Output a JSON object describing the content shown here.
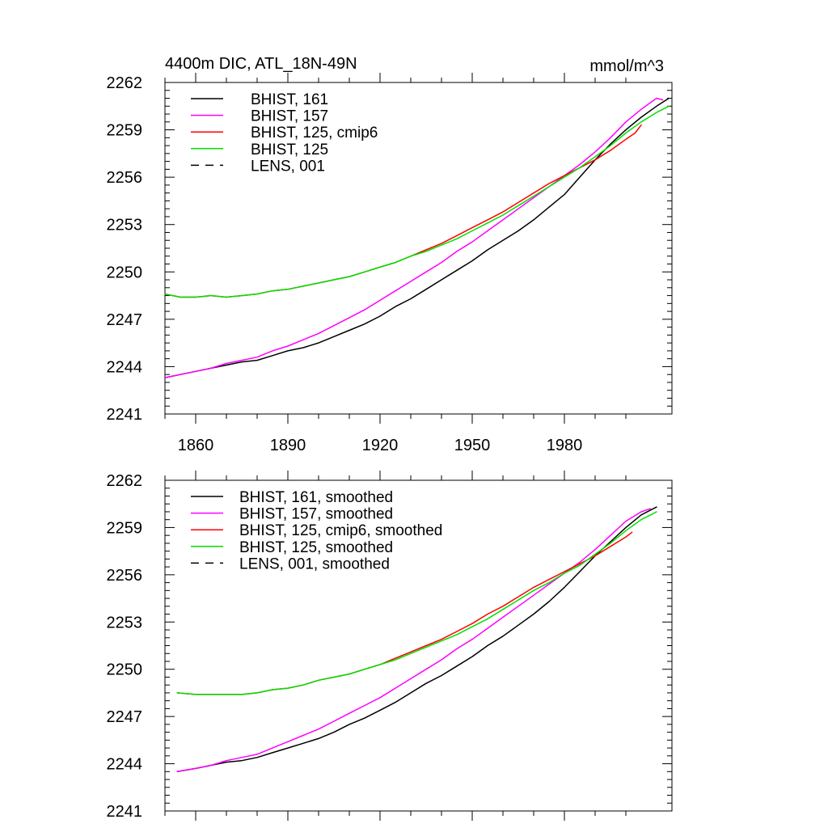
{
  "colors": {
    "black": "#000000",
    "magenta": "#ff00ff",
    "red": "#ff0000",
    "green": "#00e000"
  },
  "chart_data": [
    {
      "type": "line",
      "title": "4400m DIC, ATL_18N-49N",
      "units": "mmol/m^3",
      "xlim": [
        1850,
        2015
      ],
      "ylim": [
        2241,
        2262
      ],
      "x_ticks": [
        1860,
        1890,
        1920,
        1950,
        1980
      ],
      "x_tick_labels": [
        "1860",
        "1890",
        "1920",
        "1950",
        "1980"
      ],
      "y_ticks": [
        2241,
        2244,
        2247,
        2250,
        2253,
        2256,
        2259,
        2262
      ],
      "y_tick_labels": [
        "2241",
        "2244",
        "2247",
        "2250",
        "2253",
        "2256",
        "2259",
        "2262"
      ],
      "legend_position": "top-left",
      "series": [
        {
          "name": "BHIST, 161",
          "color": "#000000",
          "dash": "solid",
          "x": [
            1850,
            1855,
            1860,
            1865,
            1870,
            1875,
            1880,
            1885,
            1890,
            1895,
            1900,
            1905,
            1910,
            1915,
            1920,
            1925,
            1930,
            1935,
            1940,
            1945,
            1950,
            1955,
            1960,
            1965,
            1970,
            1975,
            1980,
            1985,
            1990,
            1995,
            2000,
            2005,
            2010,
            2014
          ],
          "y": [
            2243.3,
            2243.5,
            2243.7,
            2243.9,
            2244.1,
            2244.3,
            2244.4,
            2244.7,
            2245.0,
            2245.2,
            2245.5,
            2245.9,
            2246.3,
            2246.7,
            2247.2,
            2247.8,
            2248.3,
            2248.9,
            2249.5,
            2250.1,
            2250.7,
            2251.4,
            2252.0,
            2252.6,
            2253.3,
            2254.1,
            2254.9,
            2256.0,
            2257.1,
            2258.1,
            2259.0,
            2259.8,
            2260.5,
            2261.0
          ]
        },
        {
          "name": "BHIST, 157",
          "color": "#ff00ff",
          "dash": "solid",
          "x": [
            1850,
            1855,
            1860,
            1865,
            1870,
            1875,
            1880,
            1885,
            1890,
            1895,
            1900,
            1905,
            1910,
            1915,
            1920,
            1925,
            1930,
            1935,
            1940,
            1945,
            1950,
            1955,
            1960,
            1965,
            1970,
            1975,
            1980,
            1985,
            1990,
            1995,
            2000,
            2005,
            2010,
            2012
          ],
          "y": [
            2243.3,
            2243.5,
            2243.7,
            2243.9,
            2244.2,
            2244.4,
            2244.6,
            2245.0,
            2245.3,
            2245.7,
            2246.1,
            2246.6,
            2247.1,
            2247.6,
            2248.2,
            2248.8,
            2249.4,
            2250.0,
            2250.6,
            2251.3,
            2251.9,
            2252.6,
            2253.3,
            2254.0,
            2254.7,
            2255.4,
            2256.1,
            2256.8,
            2257.6,
            2258.5,
            2259.5,
            2260.3,
            2261.0,
            2260.9
          ]
        },
        {
          "name": "BHIST, 125, cmip6",
          "color": "#ff0000",
          "dash": "solid",
          "x": [
            1850,
            1855,
            1860,
            1865,
            1870,
            1875,
            1880,
            1885,
            1890,
            1895,
            1900,
            1905,
            1910,
            1915,
            1920,
            1925,
            1930,
            1935,
            1940,
            1945,
            1950,
            1955,
            1960,
            1965,
            1970,
            1975,
            1980,
            1985,
            1990,
            1995,
            2000,
            2003,
            2005
          ],
          "y": [
            2248.6,
            2248.4,
            2248.4,
            2248.5,
            2248.4,
            2248.5,
            2248.6,
            2248.8,
            2248.9,
            2249.1,
            2249.3,
            2249.5,
            2249.7,
            2250.0,
            2250.3,
            2250.6,
            2251.0,
            2251.4,
            2251.8,
            2252.3,
            2252.8,
            2253.3,
            2253.8,
            2254.4,
            2255.0,
            2255.6,
            2256.1,
            2256.6,
            2257.1,
            2257.7,
            2258.4,
            2258.8,
            2259.3
          ]
        },
        {
          "name": "BHIST, 125",
          "color": "#00e000",
          "dash": "solid",
          "x": [
            1850,
            1855,
            1860,
            1865,
            1870,
            1875,
            1880,
            1885,
            1890,
            1895,
            1900,
            1905,
            1910,
            1915,
            1920,
            1925,
            1930,
            1935,
            1940,
            1945,
            1950,
            1955,
            1960,
            1965,
            1970,
            1975,
            1980,
            1985,
            1990,
            1995,
            2000,
            2005,
            2010,
            2014
          ],
          "y": [
            2248.6,
            2248.4,
            2248.4,
            2248.5,
            2248.4,
            2248.5,
            2248.6,
            2248.8,
            2248.9,
            2249.1,
            2249.3,
            2249.5,
            2249.7,
            2250.0,
            2250.3,
            2250.6,
            2251.0,
            2251.3,
            2251.7,
            2252.1,
            2252.6,
            2253.1,
            2253.6,
            2254.2,
            2254.8,
            2255.4,
            2256.0,
            2256.6,
            2257.3,
            2258.0,
            2258.8,
            2259.5,
            2260.1,
            2260.5
          ]
        },
        {
          "name": "LENS, 001",
          "color": "#000000",
          "dash": "dashed",
          "x": [],
          "y": []
        }
      ]
    },
    {
      "type": "line",
      "title": "",
      "units": "",
      "xlim": [
        1850,
        2015
      ],
      "ylim": [
        2241,
        2262
      ],
      "x_ticks": [
        1860,
        1890,
        1920,
        1950,
        1980
      ],
      "x_tick_labels": [],
      "y_ticks": [
        2241,
        2244,
        2247,
        2250,
        2253,
        2256,
        2259,
        2262
      ],
      "y_tick_labels": [
        "2241",
        "2244",
        "2247",
        "2250",
        "2253",
        "2256",
        "2259",
        "2262"
      ],
      "legend_position": "top-left",
      "series": [
        {
          "name": "BHIST, 161, smoothed",
          "color": "#000000",
          "dash": "solid",
          "x": [
            1854,
            1860,
            1865,
            1870,
            1875,
            1880,
            1885,
            1890,
            1895,
            1900,
            1905,
            1910,
            1915,
            1920,
            1925,
            1930,
            1935,
            1940,
            1945,
            1950,
            1955,
            1960,
            1965,
            1970,
            1975,
            1980,
            1985,
            1990,
            1995,
            2000,
            2005,
            2010
          ],
          "y": [
            2243.5,
            2243.7,
            2243.9,
            2244.1,
            2244.2,
            2244.4,
            2244.7,
            2245.0,
            2245.3,
            2245.6,
            2246.0,
            2246.5,
            2246.9,
            2247.4,
            2247.9,
            2248.5,
            2249.1,
            2249.6,
            2250.2,
            2250.8,
            2251.5,
            2252.1,
            2252.8,
            2253.5,
            2254.3,
            2255.2,
            2256.2,
            2257.2,
            2258.1,
            2259.0,
            2259.8,
            2260.3
          ]
        },
        {
          "name": "BHIST, 157, smoothed",
          "color": "#ff00ff",
          "dash": "solid",
          "x": [
            1854,
            1860,
            1865,
            1870,
            1875,
            1880,
            1885,
            1890,
            1895,
            1900,
            1905,
            1910,
            1915,
            1920,
            1925,
            1930,
            1935,
            1940,
            1945,
            1950,
            1955,
            1960,
            1965,
            1970,
            1975,
            1980,
            1985,
            1990,
            1995,
            2000,
            2005,
            2008
          ],
          "y": [
            2243.5,
            2243.7,
            2243.9,
            2244.2,
            2244.4,
            2244.6,
            2245.0,
            2245.4,
            2245.8,
            2246.2,
            2246.7,
            2247.2,
            2247.7,
            2248.2,
            2248.8,
            2249.4,
            2250.0,
            2250.6,
            2251.3,
            2251.9,
            2252.6,
            2253.3,
            2254.0,
            2254.7,
            2255.4,
            2256.1,
            2256.8,
            2257.6,
            2258.5,
            2259.4,
            2260.0,
            2260.2
          ]
        },
        {
          "name": "BHIST, 125, cmip6, smoothed",
          "color": "#ff0000",
          "dash": "solid",
          "x": [
            1854,
            1860,
            1865,
            1870,
            1875,
            1880,
            1885,
            1890,
            1895,
            1900,
            1905,
            1910,
            1915,
            1920,
            1925,
            1930,
            1935,
            1940,
            1945,
            1950,
            1955,
            1960,
            1965,
            1970,
            1975,
            1980,
            1985,
            1990,
            1995,
            2000,
            2002
          ],
          "y": [
            2248.5,
            2248.4,
            2248.4,
            2248.4,
            2248.4,
            2248.5,
            2248.7,
            2248.8,
            2249.0,
            2249.3,
            2249.5,
            2249.7,
            2250.0,
            2250.3,
            2250.7,
            2251.1,
            2251.5,
            2251.9,
            2252.4,
            2252.9,
            2253.5,
            2254.0,
            2254.6,
            2255.2,
            2255.7,
            2256.2,
            2256.7,
            2257.2,
            2257.8,
            2258.4,
            2258.7
          ]
        },
        {
          "name": "BHIST, 125, smoothed",
          "color": "#00e000",
          "dash": "solid",
          "x": [
            1854,
            1860,
            1865,
            1870,
            1875,
            1880,
            1885,
            1890,
            1895,
            1900,
            1905,
            1910,
            1915,
            1920,
            1925,
            1930,
            1935,
            1940,
            1945,
            1950,
            1955,
            1960,
            1965,
            1970,
            1975,
            1980,
            1985,
            1990,
            1995,
            2000,
            2005,
            2010
          ],
          "y": [
            2248.5,
            2248.4,
            2248.4,
            2248.4,
            2248.4,
            2248.5,
            2248.7,
            2248.8,
            2249.0,
            2249.3,
            2249.5,
            2249.7,
            2250.0,
            2250.3,
            2250.6,
            2251.0,
            2251.4,
            2251.8,
            2252.2,
            2252.7,
            2253.2,
            2253.8,
            2254.4,
            2255.0,
            2255.5,
            2256.1,
            2256.6,
            2257.3,
            2258.0,
            2258.8,
            2259.5,
            2260.0
          ]
        },
        {
          "name": "LENS, 001, smoothed",
          "color": "#000000",
          "dash": "dashed",
          "x": [],
          "y": []
        }
      ]
    }
  ]
}
